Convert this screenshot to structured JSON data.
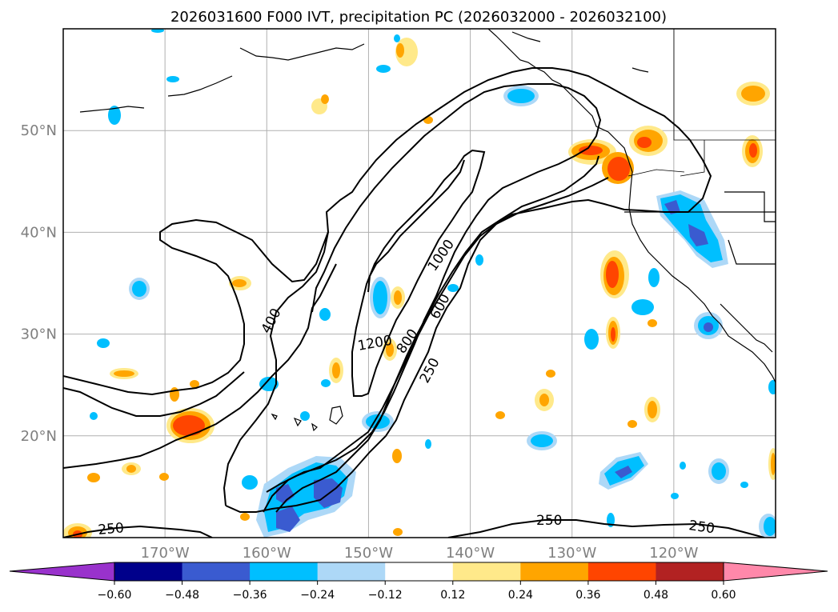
{
  "title": "2026031600 F000 IVT, precipitation PC (2026032000 - 2026032100)",
  "map": {
    "lon_range": [
      -180,
      -110
    ],
    "lat_range": [
      10,
      60
    ],
    "lat_gridlines": [
      {
        "value": 20,
        "label": "20°N"
      },
      {
        "value": 30,
        "label": "30°N"
      },
      {
        "value": 40,
        "label": "40°N"
      },
      {
        "value": 50,
        "label": "50°N"
      }
    ],
    "lon_gridlines": [
      {
        "value": -170,
        "label": "170°W"
      },
      {
        "value": -160,
        "label": "160°W"
      },
      {
        "value": -150,
        "label": "150°W"
      },
      {
        "value": -140,
        "label": "140°W"
      },
      {
        "value": -130,
        "label": "130°W"
      },
      {
        "value": -120,
        "label": "120°W"
      }
    ]
  },
  "ivt_contours": {
    "labels": [
      "250",
      "400",
      "600",
      "800",
      "1000",
      "1200",
      "250",
      "250",
      "250"
    ]
  },
  "colorbar": {
    "tick_labels": [
      "−0.60",
      "−0.48",
      "−0.36",
      "−0.24",
      "−0.12",
      "0.12",
      "0.24",
      "0.36",
      "0.48",
      "0.60"
    ],
    "colors": {
      "under": "#9932cc",
      "bin1": "#00008b",
      "bin2": "#3a5bd0",
      "bin3": "#00bfff",
      "bin4": "#add8f7",
      "bin5": "#ffffff",
      "bin6": "#ffe98a",
      "bin7": "#ffa500",
      "bin8": "#ff4500",
      "bin9": "#b22222",
      "over": "#ff88aa"
    }
  }
}
